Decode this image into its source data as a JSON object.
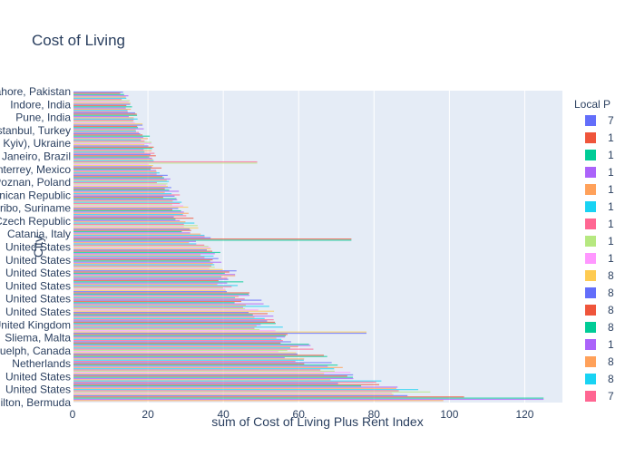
{
  "chart_data": {
    "type": "bar",
    "orientation": "horizontal",
    "title": "Cost of Living",
    "xlabel": "sum of Cost of Living Plus Rent Index",
    "ylabel": "City",
    "xlim": [
      0,
      130
    ],
    "x_ticks": [
      0,
      20,
      40,
      60,
      80,
      100,
      120
    ],
    "legend_title": "Local P",
    "legend_placement": "right",
    "legend_entries": [
      {
        "label": "7",
        "color": "#636efa"
      },
      {
        "label": "1",
        "color": "#EF553B"
      },
      {
        "label": "1",
        "color": "#00cc96"
      },
      {
        "label": "1",
        "color": "#ab63fa"
      },
      {
        "label": "1",
        "color": "#FFA15A"
      },
      {
        "label": "1",
        "color": "#19d3f3"
      },
      {
        "label": "1",
        "color": "#FF6692"
      },
      {
        "label": "1",
        "color": "#B6E880"
      },
      {
        "label": "1",
        "color": "#FF97FF"
      },
      {
        "label": "8",
        "color": "#FECB52"
      },
      {
        "label": "8",
        "color": "#636efa"
      },
      {
        "label": "8",
        "color": "#EF553B"
      },
      {
        "label": "8",
        "color": "#00cc96"
      },
      {
        "label": "1",
        "color": "#ab63fa"
      },
      {
        "label": "8",
        "color": "#FFA15A"
      },
      {
        "label": "8",
        "color": "#19d3f3"
      },
      {
        "label": "7",
        "color": "#FF6692"
      }
    ],
    "visible_y_labels": [
      "Lahore, Pakistan",
      "Indore, India",
      "Pune, India",
      "Istanbul, Turkey",
      "Kyiv), Ukraine",
      "Rio de Janeiro, Brazil",
      "Monterrey, Mexico",
      "Poznan, Poland",
      "Dominican Republic",
      "Paramaribo, Suriname",
      "Czech Republic",
      "Catania, Italy",
      "United States",
      "United States",
      "United States",
      "United States",
      "United States",
      "United States",
      "United Kingdom",
      "Sliema, Malta",
      "Guelph, Canada",
      "Netherlands",
      "United States",
      "United States",
      "Hamilton, Bermuda"
    ],
    "bar_envelope": [
      [
        0,
        13
      ],
      [
        0.1,
        17
      ],
      [
        0.2,
        21
      ],
      [
        0.3,
        25
      ],
      [
        0.4,
        29
      ],
      [
        0.5,
        35
      ],
      [
        0.6,
        41
      ],
      [
        0.7,
        48
      ],
      [
        0.8,
        56
      ],
      [
        0.9,
        66
      ],
      [
        0.96,
        82
      ],
      [
        1,
        102
      ]
    ],
    "bar_outliers": [
      {
        "position": 0.23,
        "value": 49
      },
      {
        "position": 0.48,
        "value": 74
      },
      {
        "position": 0.78,
        "value": 78
      },
      {
        "position": 0.995,
        "value": 125
      }
    ]
  }
}
